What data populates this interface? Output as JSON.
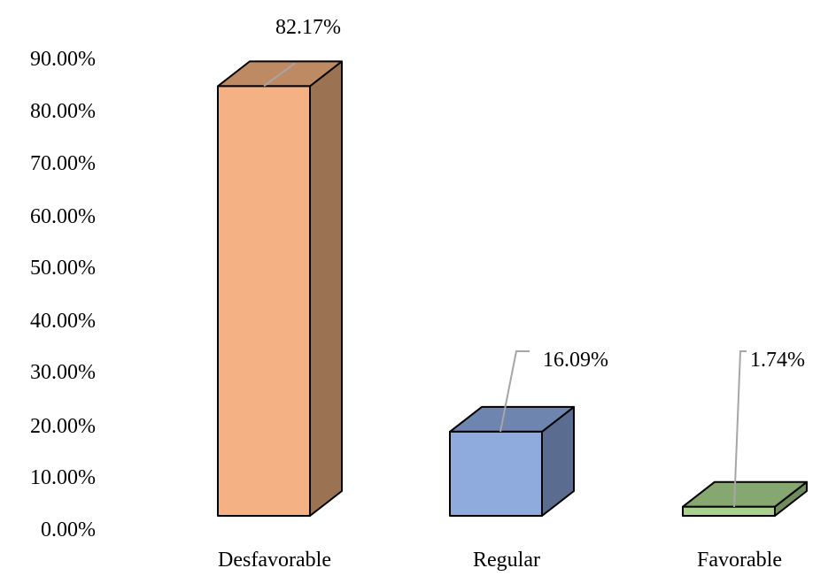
{
  "chart_data": {
    "type": "bar",
    "categories": [
      "Desfavorable",
      "Regular",
      "Favorable"
    ],
    "values": [
      82.17,
      16.09,
      1.74
    ],
    "data_labels": [
      "82.17%",
      "16.09%",
      "1.74%"
    ],
    "ylim": [
      0,
      90
    ],
    "yticks": [
      0,
      10,
      20,
      30,
      40,
      50,
      60,
      70,
      80,
      90
    ],
    "ytick_labels": [
      "0.00%",
      "10.00%",
      "20.00%",
      "30.00%",
      "40.00%",
      "50.00%",
      "60.00%",
      "70.00%",
      "80.00%",
      "90.00%"
    ],
    "grid": false,
    "style": "3d-column",
    "colors": {
      "front": [
        "#f4b183",
        "#8faadc",
        "#a9d18e"
      ],
      "side": [
        "#9c7352",
        "#5a6d91",
        "#6e8c5c"
      ],
      "top": [
        "#be8a63",
        "#6e85b0",
        "#86a870"
      ]
    }
  }
}
